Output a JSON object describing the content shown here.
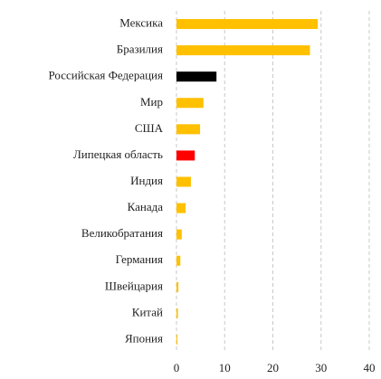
{
  "chart_data": {
    "type": "barh",
    "categories": [
      "Мексика",
      "Бразилия",
      "Российская Федерация",
      "Мир",
      "США",
      "Липецкая область",
      "Индия",
      "Канада",
      "Великобратания",
      "Германия",
      "Швейцария",
      "Китай",
      "Япония"
    ],
    "values": [
      29.3,
      27.7,
      8.3,
      5.6,
      4.9,
      3.8,
      3.0,
      1.9,
      1.1,
      0.8,
      0.4,
      0.3,
      0.2
    ],
    "colors": [
      "#ffc000",
      "#ffc000",
      "#000000",
      "#ffc000",
      "#ffc000",
      "#ff0000",
      "#ffc000",
      "#ffc000",
      "#ffc000",
      "#ffc000",
      "#ffc000",
      "#ffc000",
      "#ffc000"
    ],
    "xlim": [
      0,
      40
    ],
    "xticks": [
      0,
      10,
      20,
      30,
      40
    ],
    "grid": true
  }
}
